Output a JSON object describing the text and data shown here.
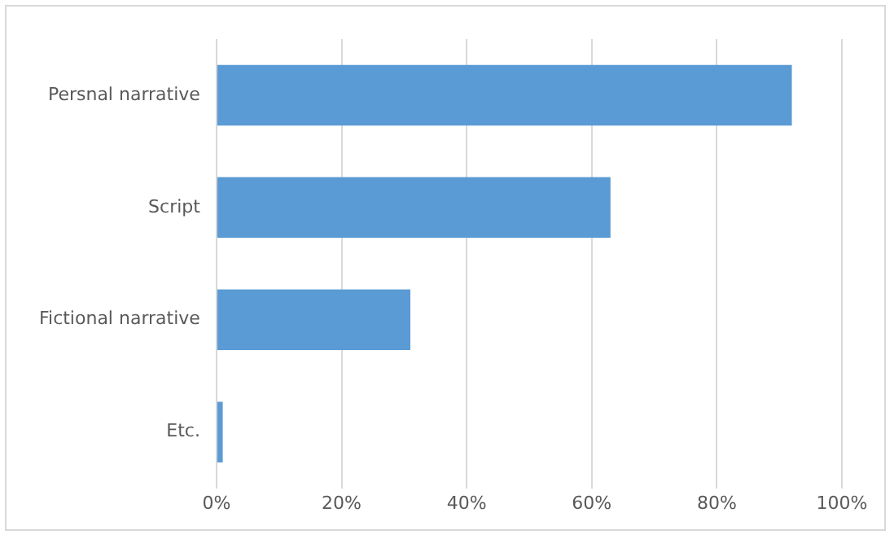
{
  "chart_data": {
    "type": "bar",
    "orientation": "horizontal",
    "categories": [
      "Persnal narrative",
      "Script",
      "Fictional narrative",
      "Etc."
    ],
    "values": [
      92,
      63,
      31,
      1
    ],
    "color": "#5b9bd5",
    "xlim": [
      0,
      100
    ],
    "xticks": [
      {
        "value": 0,
        "label": "0%"
      },
      {
        "value": 20,
        "label": "20%"
      },
      {
        "value": 40,
        "label": "40%"
      },
      {
        "value": 60,
        "label": "60%"
      },
      {
        "value": 80,
        "label": "80%"
      },
      {
        "value": 100,
        "label": "100%"
      }
    ],
    "grid": "x",
    "legend": false
  }
}
